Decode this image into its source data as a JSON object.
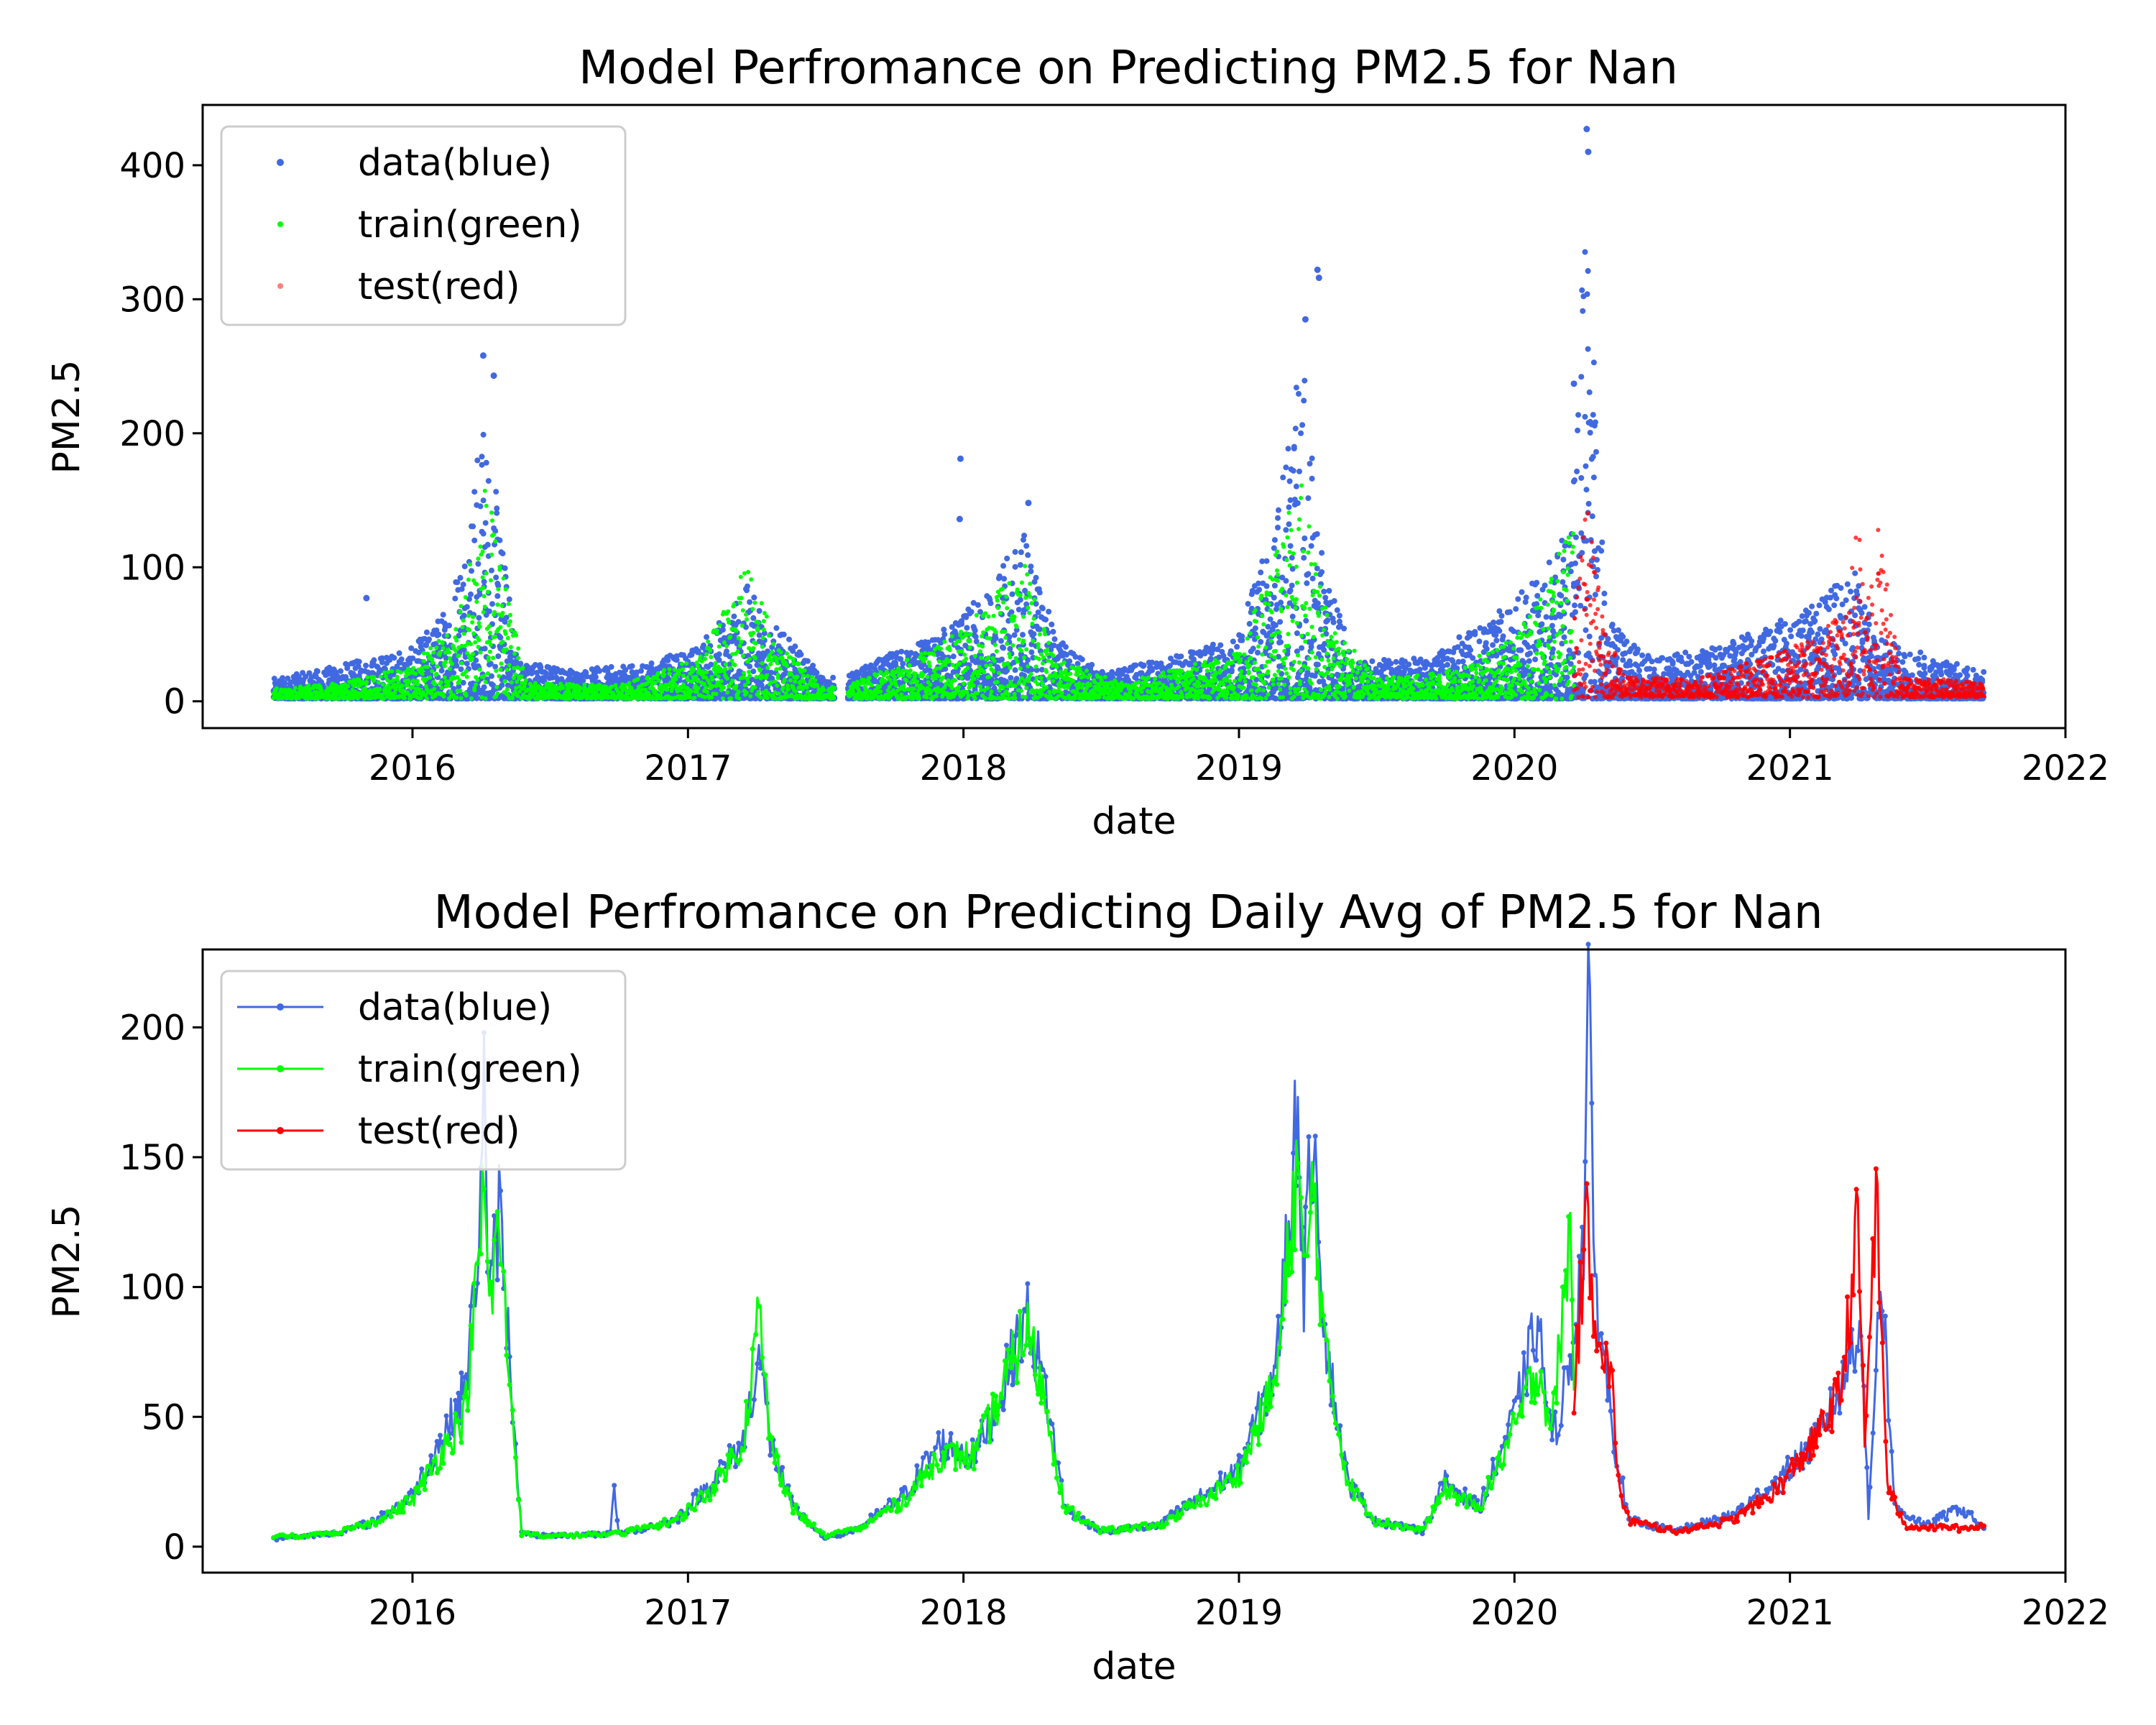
{
  "chart_data": [
    {
      "type": "scatter",
      "title": "Model Perfromance on Predicting PM2.5 for Nan",
      "xlabel": "date",
      "ylabel": "PM2.5",
      "xlim": [
        "2015-03-29",
        "2022-01-01"
      ],
      "ylim": [
        -20,
        445
      ],
      "xticks": [
        "2016",
        "2017",
        "2018",
        "2019",
        "2020",
        "2021",
        "2022"
      ],
      "yticks": [
        0,
        100,
        200,
        300,
        400
      ],
      "legend_position": "upper-left",
      "train_test_split": "2020-03-20",
      "colors": {
        "data": "#4169e1",
        "train": "#00ff00",
        "test": "#ff0000"
      },
      "series": [
        {
          "name": "data(blue)",
          "envelope": [
            [
              "2015-07-01",
              15
            ],
            [
              "2015-09-01",
              22
            ],
            [
              "2015-11-01",
              30
            ],
            [
              "2016-01-01",
              38
            ],
            [
              "2016-02-15",
              70
            ],
            [
              "2016-03-15",
              140
            ],
            [
              "2016-04-05",
              220
            ],
            [
              "2016-04-20",
              160
            ],
            [
              "2016-05-20",
              30
            ],
            [
              "2016-08-01",
              22
            ],
            [
              "2016-11-01",
              25
            ],
            [
              "2017-01-15",
              40
            ],
            [
              "2017-03-20",
              85
            ],
            [
              "2017-04-20",
              60
            ],
            [
              "2017-07-01",
              15
            ],
            [
              "2017-08-01",
              18
            ],
            [
              "2017-10-01",
              35
            ],
            [
              "2017-12-01",
              50
            ],
            [
              "2018-02-01",
              80
            ],
            [
              "2018-03-25",
              130
            ],
            [
              "2018-05-01",
              50
            ],
            [
              "2018-07-01",
              20
            ],
            [
              "2018-10-01",
              30
            ],
            [
              "2019-01-01",
              50
            ],
            [
              "2019-02-15",
              130
            ],
            [
              "2019-03-25",
              260
            ],
            [
              "2019-04-20",
              110
            ],
            [
              "2019-06-01",
              30
            ],
            [
              "2019-09-01",
              30
            ],
            [
              "2019-12-01",
              60
            ],
            [
              "2020-02-01",
              90
            ],
            [
              "2020-03-15",
              130
            ],
            [
              "2020-04-05",
              400
            ],
            [
              "2020-05-01",
              60
            ],
            [
              "2020-07-01",
              30
            ],
            [
              "2020-10-01",
              40
            ],
            [
              "2020-12-01",
              55
            ],
            [
              "2021-02-01",
              70
            ],
            [
              "2021-03-25",
              100
            ],
            [
              "2021-05-01",
              45
            ],
            [
              "2021-09-15",
              20
            ]
          ],
          "outliers": [
            {
              "x": "2015-11-01",
              "y": 77
            },
            {
              "x": "2017-12-28",
              "y": 181
            },
            {
              "x": "2017-12-27",
              "y": 136
            },
            {
              "x": "2019-04-15",
              "y": 322
            },
            {
              "x": "2019-04-17",
              "y": 316
            },
            {
              "x": "2019-03-30",
              "y": 285
            },
            {
              "x": "2020-04-06",
              "y": 427
            },
            {
              "x": "2020-04-08",
              "y": 410
            },
            {
              "x": "2016-04-04",
              "y": 258
            },
            {
              "x": "2016-04-18",
              "y": 243
            },
            {
              "x": "2020-03-20",
              "y": 237
            },
            {
              "x": "2018-03-28",
              "y": 148
            }
          ]
        },
        {
          "name": "train(green)",
          "x_range": [
            "2015-07-01",
            "2020-03-20"
          ],
          "envelope": [
            [
              "2015-07-01",
              8
            ],
            [
              "2015-10-01",
              12
            ],
            [
              "2016-01-01",
              25
            ],
            [
              "2016-03-01",
              60
            ],
            [
              "2016-04-05",
              170
            ],
            [
              "2016-05-01",
              90
            ],
            [
              "2016-06-01",
              12
            ],
            [
              "2016-10-01",
              10
            ],
            [
              "2017-01-15",
              30
            ],
            [
              "2017-03-20",
              100
            ],
            [
              "2017-05-01",
              40
            ],
            [
              "2017-07-01",
              8
            ],
            [
              "2017-08-01",
              10
            ],
            [
              "2017-12-01",
              40
            ],
            [
              "2018-03-25",
              100
            ],
            [
              "2018-05-01",
              30
            ],
            [
              "2018-08-01",
              12
            ],
            [
              "2019-01-01",
              35
            ],
            [
              "2019-03-25",
              165
            ],
            [
              "2019-05-01",
              60
            ],
            [
              "2019-07-01",
              15
            ],
            [
              "2019-10-01",
              20
            ],
            [
              "2020-01-01",
              45
            ],
            [
              "2020-03-15",
              130
            ]
          ]
        },
        {
          "name": "test(red)",
          "x_range": [
            "2020-03-20",
            "2021-09-15"
          ],
          "envelope": [
            [
              "2020-03-20",
              60
            ],
            [
              "2020-04-05",
              150
            ],
            [
              "2020-05-01",
              45
            ],
            [
              "2020-06-01",
              15
            ],
            [
              "2020-09-01",
              15
            ],
            [
              "2020-12-01",
              30
            ],
            [
              "2021-02-01",
              45
            ],
            [
              "2021-03-20",
              70
            ],
            [
              "2021-04-01",
              148
            ],
            [
              "2021-04-10",
              60
            ],
            [
              "2021-04-25",
              145
            ],
            [
              "2021-06-01",
              15
            ],
            [
              "2021-09-15",
              12
            ]
          ]
        }
      ]
    },
    {
      "type": "line",
      "title": "Model Perfromance on Predicting Daily Avg of PM2.5 for Nan",
      "xlabel": "date",
      "ylabel": "PM2.5",
      "xlim": [
        "2015-03-29",
        "2022-01-01"
      ],
      "ylim": [
        -10,
        230
      ],
      "xticks": [
        "2016",
        "2017",
        "2018",
        "2019",
        "2020",
        "2021",
        "2022"
      ],
      "yticks": [
        0,
        50,
        100,
        150,
        200
      ],
      "legend_position": "upper-left",
      "colors": {
        "data": "#4169e1",
        "train": "#00ff00",
        "test": "#ff0000"
      },
      "series": [
        {
          "name": "data(blue)",
          "points": [
            [
              "2015-07-01",
              3
            ],
            [
              "2015-08-15",
              4
            ],
            [
              "2015-10-01",
              6
            ],
            [
              "2015-11-15",
              10
            ],
            [
              "2016-01-01",
              20
            ],
            [
              "2016-02-15",
              45
            ],
            [
              "2016-03-10",
              60
            ],
            [
              "2016-03-25",
              100
            ],
            [
              "2016-04-05",
              178
            ],
            [
              "2016-04-12",
              90
            ],
            [
              "2016-04-25",
              130
            ],
            [
              "2016-05-05",
              90
            ],
            [
              "2016-05-25",
              5
            ],
            [
              "2016-07-01",
              4
            ],
            [
              "2016-09-20",
              5
            ],
            [
              "2016-09-25",
              24
            ],
            [
              "2016-10-01",
              5
            ],
            [
              "2016-12-15",
              10
            ],
            [
              "2017-02-01",
              25
            ],
            [
              "2017-03-15",
              40
            ],
            [
              "2017-04-05",
              75
            ],
            [
              "2017-04-20",
              40
            ],
            [
              "2017-05-20",
              15
            ],
            [
              "2017-07-01",
              3
            ],
            [
              "2017-08-15",
              7
            ],
            [
              "2017-10-15",
              20
            ],
            [
              "2017-12-01",
              40
            ],
            [
              "2018-01-15",
              35
            ],
            [
              "2018-02-15",
              55
            ],
            [
              "2018-03-25",
              90
            ],
            [
              "2018-04-20",
              60
            ],
            [
              "2018-05-15",
              15
            ],
            [
              "2018-07-01",
              6
            ],
            [
              "2018-09-15",
              8
            ],
            [
              "2018-11-15",
              20
            ],
            [
              "2019-01-01",
              30
            ],
            [
              "2019-02-20",
              70
            ],
            [
              "2019-03-20",
              170
            ],
            [
              "2019-03-28",
              100
            ],
            [
              "2019-04-10",
              170
            ],
            [
              "2019-04-25",
              80
            ],
            [
              "2019-05-25",
              25
            ],
            [
              "2019-07-01",
              10
            ],
            [
              "2019-09-01",
              6
            ],
            [
              "2019-10-01",
              25
            ],
            [
              "2019-11-15",
              15
            ],
            [
              "2020-01-01",
              50
            ],
            [
              "2020-02-01",
              87
            ],
            [
              "2020-02-20",
              40
            ],
            [
              "2020-03-15",
              70
            ],
            [
              "2020-04-02",
              120
            ],
            [
              "2020-04-08",
              221
            ],
            [
              "2020-04-15",
              110
            ],
            [
              "2020-05-10",
              45
            ],
            [
              "2020-06-01",
              10
            ],
            [
              "2020-08-01",
              6
            ],
            [
              "2020-10-15",
              12
            ],
            [
              "2020-12-15",
              25
            ],
            [
              "2021-02-01",
              40
            ],
            [
              "2021-03-10",
              60
            ],
            [
              "2021-04-05",
              90
            ],
            [
              "2021-04-15",
              10
            ],
            [
              "2021-05-01",
              110
            ],
            [
              "2021-05-20",
              15
            ],
            [
              "2021-07-01",
              8
            ],
            [
              "2021-08-15",
              15
            ],
            [
              "2021-09-15",
              7
            ]
          ]
        },
        {
          "name": "train(green)",
          "points": [
            [
              "2015-07-01",
              4
            ],
            [
              "2015-08-15",
              4
            ],
            [
              "2015-10-01",
              6
            ],
            [
              "2015-11-15",
              10
            ],
            [
              "2016-01-01",
              18
            ],
            [
              "2016-02-15",
              40
            ],
            [
              "2016-03-10",
              50
            ],
            [
              "2016-03-25",
              95
            ],
            [
              "2016-04-05",
              140
            ],
            [
              "2016-04-12",
              90
            ],
            [
              "2016-04-25",
              125
            ],
            [
              "2016-05-05",
              80
            ],
            [
              "2016-05-25",
              5
            ],
            [
              "2016-07-01",
              4
            ],
            [
              "2016-10-01",
              5
            ],
            [
              "2016-12-15",
              10
            ],
            [
              "2017-02-01",
              22
            ],
            [
              "2017-03-15",
              40
            ],
            [
              "2017-04-05",
              90
            ],
            [
              "2017-04-20",
              40
            ],
            [
              "2017-05-20",
              15
            ],
            [
              "2017-07-01",
              4
            ],
            [
              "2017-08-15",
              7
            ],
            [
              "2017-10-15",
              18
            ],
            [
              "2017-12-01",
              35
            ],
            [
              "2018-01-15",
              35
            ],
            [
              "2018-02-15",
              55
            ],
            [
              "2018-03-25",
              85
            ],
            [
              "2018-04-20",
              55
            ],
            [
              "2018-05-15",
              15
            ],
            [
              "2018-07-01",
              6
            ],
            [
              "2018-09-15",
              8
            ],
            [
              "2018-11-15",
              18
            ],
            [
              "2019-01-01",
              28
            ],
            [
              "2019-02-20",
              65
            ],
            [
              "2019-03-20",
              150
            ],
            [
              "2019-03-28",
              100
            ],
            [
              "2019-04-10",
              140
            ],
            [
              "2019-04-25",
              75
            ],
            [
              "2019-05-25",
              25
            ],
            [
              "2019-07-01",
              10
            ],
            [
              "2019-09-01",
              6
            ],
            [
              "2019-10-01",
              22
            ],
            [
              "2019-11-15",
              15
            ],
            [
              "2020-01-01",
              45
            ],
            [
              "2020-02-01",
              70
            ],
            [
              "2020-02-20",
              45
            ],
            [
              "2020-03-15",
              122
            ],
            [
              "2020-03-20",
              60
            ]
          ]
        },
        {
          "name": "test(red)",
          "points": [
            [
              "2020-03-20",
              60
            ],
            [
              "2020-04-02",
              110
            ],
            [
              "2020-04-08",
              125
            ],
            [
              "2020-04-15",
              95
            ],
            [
              "2020-05-10",
              60
            ],
            [
              "2020-05-20",
              20
            ],
            [
              "2020-06-01",
              10
            ],
            [
              "2020-08-01",
              6
            ],
            [
              "2020-10-15",
              10
            ],
            [
              "2020-12-15",
              22
            ],
            [
              "2021-02-01",
              40
            ],
            [
              "2021-03-10",
              60
            ],
            [
              "2021-04-01",
              124
            ],
            [
              "2021-04-10",
              40
            ],
            [
              "2021-04-25",
              135
            ],
            [
              "2021-05-10",
              25
            ],
            [
              "2021-06-01",
              8
            ],
            [
              "2021-08-15",
              7
            ],
            [
              "2021-09-15",
              8
            ]
          ]
        }
      ]
    }
  ]
}
